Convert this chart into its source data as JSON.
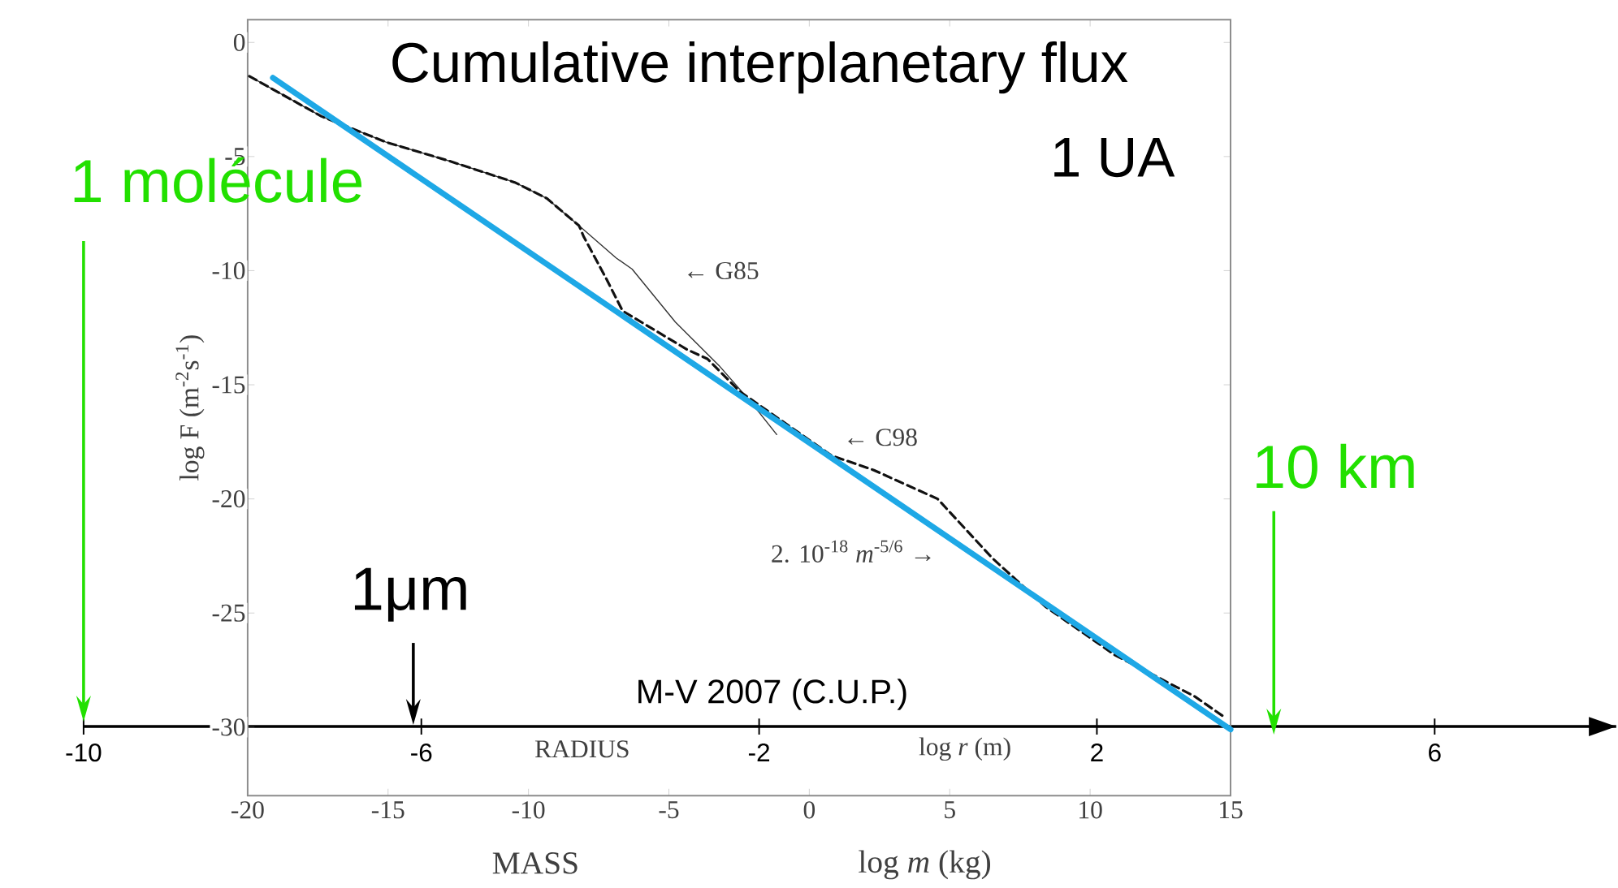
{
  "chart_data": {
    "type": "line",
    "title": "Cumulative interplanetary flux",
    "subtitle": "1 UA",
    "xlabel": "log *m* (kg)",
    "ylabel": "log F (m$^{-2}$s$^{-1}$)",
    "x2label": "log *r* (m)",
    "xlim": [
      -20,
      15
    ],
    "ylim": [
      -33,
      1
    ],
    "xticks": [
      -20,
      -15,
      -10,
      -5,
      0,
      5,
      10,
      15
    ],
    "yticks": [
      0,
      -5,
      -10,
      -15,
      -20,
      -25,
      -30
    ],
    "x2lim": [
      -10,
      8.15
    ],
    "x2ticks": [
      -10,
      -6,
      -2,
      2,
      6
    ],
    "series": [
      {
        "name": "← G85",
        "color": "#333333",
        "line_style": "solid",
        "x": [
          -19.94,
          -17.37,
          -15.07,
          -12.78,
          -10.49,
          -9.35,
          -8.2,
          -6.88,
          -6.31,
          -4.77,
          -3.22,
          -2.07,
          -1.16
        ],
        "values": [
          -1.48,
          -3.24,
          -4.37,
          -5.21,
          -6.13,
          -6.83,
          -8.03,
          -9.44,
          -9.93,
          -12.25,
          -14.15,
          -15.77,
          -17.18
        ]
      },
      {
        "name": "← C98",
        "color": "#111111",
        "line_style": "dashed",
        "x": [
          -19.94,
          -17.37,
          -15.07,
          -12.78,
          -10.49,
          -9.35,
          -8.2,
          -8.03,
          -7.23,
          -6.65,
          -4.36,
          -3.62,
          -2.47,
          0.79,
          2.28,
          4.57,
          6.52,
          8.41,
          10.87,
          13.73,
          14.71
        ],
        "values": [
          -1.48,
          -3.24,
          -4.37,
          -5.21,
          -6.13,
          -6.83,
          -8.03,
          -8.52,
          -10.35,
          -11.76,
          -13.45,
          -13.87,
          -15.3,
          -18.1,
          -18.73,
          -20.0,
          -22.6,
          -24.72,
          -26.83,
          -28.66,
          -29.5
        ]
      },
      {
        "name": "2. 10$^{-18}$ *m*$^{-5/6}$ →",
        "color": "#1ea8e6",
        "line_style": "solid",
        "x": [
          -19.1,
          15
        ],
        "values": [
          -1.55,
          -30.1
        ]
      }
    ],
    "annotations": [
      "1 molécule",
      "1μm",
      "10 km",
      "M-V 2007 (C.U.P.)",
      "MASS",
      "RADIUS"
    ]
  }
}
